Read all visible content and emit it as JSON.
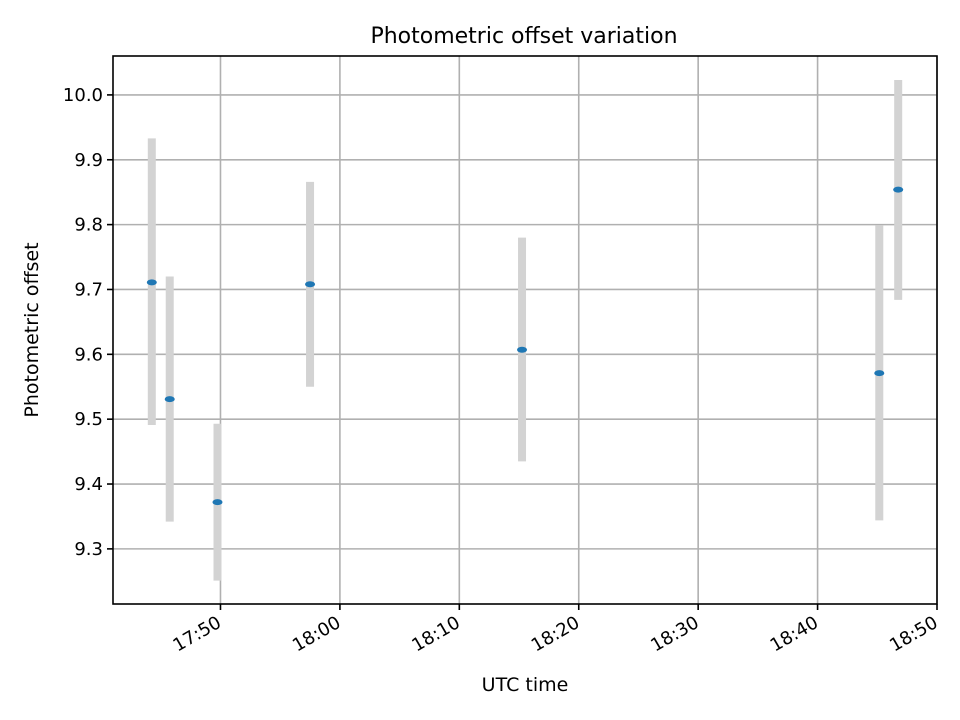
{
  "chart_data": {
    "type": "scatter",
    "title": "Photometric offset variation",
    "xlabel": "UTC time",
    "ylabel": "Photometric offset",
    "x_axis": "time",
    "xlim": [
      "17:41:00",
      "18:50:00"
    ],
    "ylim": [
      9.215,
      10.06
    ],
    "x_ticks": [
      "17:50",
      "18:00",
      "18:10",
      "18:20",
      "18:30",
      "18:40",
      "18:50"
    ],
    "y_ticks": [
      "9.3",
      "9.4",
      "9.5",
      "9.6",
      "9.7",
      "9.8",
      "9.9",
      "10.0"
    ],
    "grid": true,
    "series": [
      {
        "points": [
          {
            "x": "17:44:15",
            "y": 9.711,
            "ylow": 9.491,
            "yhigh": 9.933
          },
          {
            "x": "17:45:45",
            "y": 9.531,
            "ylow": 9.342,
            "yhigh": 9.72
          },
          {
            "x": "17:49:45",
            "y": 9.372,
            "ylow": 9.251,
            "yhigh": 9.493
          },
          {
            "x": "17:57:30",
            "y": 9.708,
            "ylow": 9.55,
            "yhigh": 9.866
          },
          {
            "x": "18:15:15",
            "y": 9.607,
            "ylow": 9.435,
            "yhigh": 9.78
          },
          {
            "x": "18:45:10",
            "y": 9.571,
            "ylow": 9.344,
            "yhigh": 9.799
          },
          {
            "x": "18:46:45",
            "y": 9.854,
            "ylow": 9.684,
            "yhigh": 10.023
          }
        ]
      }
    ],
    "colors": {
      "point": "#1f77b4",
      "errorbar": "#d3d3d3",
      "grid": "#b0b0b0"
    }
  }
}
